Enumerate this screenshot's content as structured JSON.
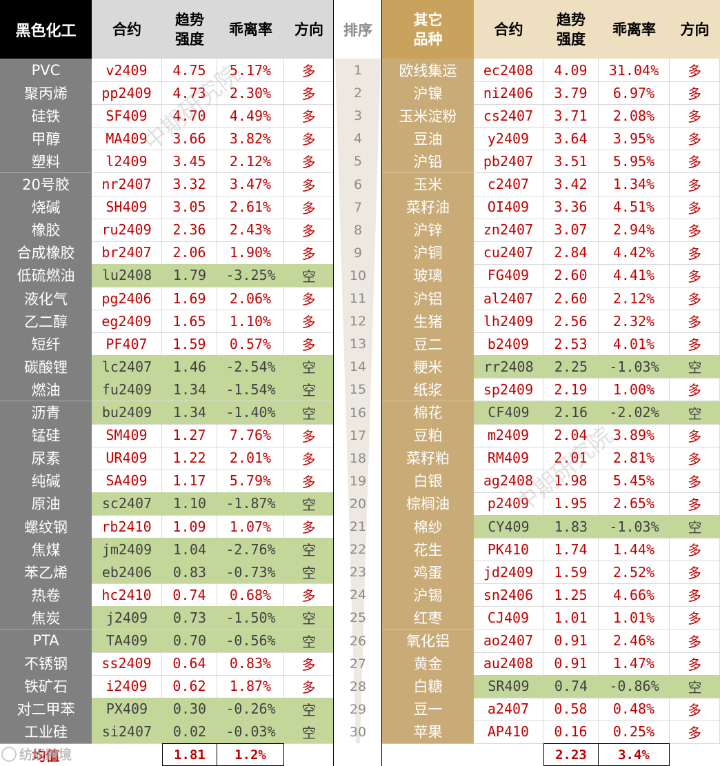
{
  "headers": {
    "left_category": "黑色化工",
    "contract": "合约",
    "strength": "趋势\n强度",
    "deviation": "乖离率",
    "direction": "方向",
    "rank": "排序",
    "right_category": "其它\n品种"
  },
  "colors": {
    "long_text": "#c00000",
    "short_bg": "#c4d79b",
    "left_name_bg": "#808080",
    "right_name_bg": "#c9ab78",
    "right_header_bg": "#c9a35d"
  },
  "left_rows": [
    {
      "name": "PVC",
      "contract": "v2409",
      "strength": "4.75",
      "deviation": "5.17%",
      "dir": "多"
    },
    {
      "name": "聚丙烯",
      "contract": "pp2409",
      "strength": "4.73",
      "deviation": "2.30%",
      "dir": "多"
    },
    {
      "name": "硅铁",
      "contract": "SF409",
      "strength": "4.70",
      "deviation": "4.49%",
      "dir": "多"
    },
    {
      "name": "甲醇",
      "contract": "MA409",
      "strength": "3.66",
      "deviation": "3.82%",
      "dir": "多"
    },
    {
      "name": "塑料",
      "contract": "l2409",
      "strength": "3.45",
      "deviation": "2.12%",
      "dir": "多"
    },
    {
      "name": "20号胶",
      "contract": "nr2407",
      "strength": "3.32",
      "deviation": "3.47%",
      "dir": "多"
    },
    {
      "name": "烧碱",
      "contract": "SH409",
      "strength": "3.05",
      "deviation": "2.61%",
      "dir": "多"
    },
    {
      "name": "橡胶",
      "contract": "ru2409",
      "strength": "2.36",
      "deviation": "2.43%",
      "dir": "多"
    },
    {
      "name": "合成橡胶",
      "contract": "br2407",
      "strength": "2.06",
      "deviation": "1.90%",
      "dir": "多"
    },
    {
      "name": "低硫燃油",
      "contract": "lu2408",
      "strength": "1.79",
      "deviation": "-3.25%",
      "dir": "空"
    },
    {
      "name": "液化气",
      "contract": "pg2406",
      "strength": "1.69",
      "deviation": "2.06%",
      "dir": "多"
    },
    {
      "name": "乙二醇",
      "contract": "eg2409",
      "strength": "1.65",
      "deviation": "1.10%",
      "dir": "多"
    },
    {
      "name": "短纤",
      "contract": "PF407",
      "strength": "1.59",
      "deviation": "0.57%",
      "dir": "多"
    },
    {
      "name": "碳酸锂",
      "contract": "lc2407",
      "strength": "1.46",
      "deviation": "-2.54%",
      "dir": "空"
    },
    {
      "name": "燃油",
      "contract": "fu2409",
      "strength": "1.34",
      "deviation": "-1.54%",
      "dir": "空"
    },
    {
      "name": "沥青",
      "contract": "bu2409",
      "strength": "1.34",
      "deviation": "-1.40%",
      "dir": "空"
    },
    {
      "name": "锰硅",
      "contract": "SM409",
      "strength": "1.27",
      "deviation": "7.76%",
      "dir": "多"
    },
    {
      "name": "尿素",
      "contract": "UR409",
      "strength": "1.22",
      "deviation": "2.01%",
      "dir": "多"
    },
    {
      "name": "纯碱",
      "contract": "SA409",
      "strength": "1.17",
      "deviation": "5.79%",
      "dir": "多"
    },
    {
      "name": "原油",
      "contract": "sc2407",
      "strength": "1.10",
      "deviation": "-1.87%",
      "dir": "空"
    },
    {
      "name": "螺纹钢",
      "contract": "rb2410",
      "strength": "1.09",
      "deviation": "1.07%",
      "dir": "多"
    },
    {
      "name": "焦煤",
      "contract": "jm2409",
      "strength": "1.04",
      "deviation": "-2.76%",
      "dir": "空"
    },
    {
      "name": "苯乙烯",
      "contract": "eb2406",
      "strength": "0.83",
      "deviation": "-0.73%",
      "dir": "空"
    },
    {
      "name": "热卷",
      "contract": "hc2410",
      "strength": "0.74",
      "deviation": "0.68%",
      "dir": "多"
    },
    {
      "name": "焦炭",
      "contract": "j2409",
      "strength": "0.73",
      "deviation": "-1.50%",
      "dir": "空"
    },
    {
      "name": "PTA",
      "contract": "TA409",
      "strength": "0.70",
      "deviation": "-0.56%",
      "dir": "空"
    },
    {
      "name": "不锈钢",
      "contract": "ss2409",
      "strength": "0.64",
      "deviation": "0.83%",
      "dir": "多"
    },
    {
      "name": "铁矿石",
      "contract": "i2409",
      "strength": "0.62",
      "deviation": "1.87%",
      "dir": "多"
    },
    {
      "name": "对二甲苯",
      "contract": "PX409",
      "strength": "0.30",
      "deviation": "-0.26%",
      "dir": "空"
    },
    {
      "name": "工业硅",
      "contract": "si2407",
      "strength": "0.02",
      "deviation": "-0.03%",
      "dir": "空"
    }
  ],
  "right_rows": [
    {
      "name": "欧线集运",
      "contract": "ec2408",
      "strength": "4.09",
      "deviation": "31.04%",
      "dir": "多"
    },
    {
      "name": "沪镍",
      "contract": "ni2406",
      "strength": "3.79",
      "deviation": "6.97%",
      "dir": "多"
    },
    {
      "name": "玉米淀粉",
      "contract": "cs2407",
      "strength": "3.71",
      "deviation": "2.08%",
      "dir": "多"
    },
    {
      "name": "豆油",
      "contract": "y2409",
      "strength": "3.64",
      "deviation": "3.95%",
      "dir": "多"
    },
    {
      "name": "沪铅",
      "contract": "pb2407",
      "strength": "3.51",
      "deviation": "5.95%",
      "dir": "多"
    },
    {
      "name": "玉米",
      "contract": "c2407",
      "strength": "3.42",
      "deviation": "1.34%",
      "dir": "多"
    },
    {
      "name": "菜籽油",
      "contract": "OI409",
      "strength": "3.36",
      "deviation": "4.51%",
      "dir": "多"
    },
    {
      "name": "沪锌",
      "contract": "zn2407",
      "strength": "3.07",
      "deviation": "2.94%",
      "dir": "多"
    },
    {
      "name": "沪铜",
      "contract": "cu2407",
      "strength": "2.84",
      "deviation": "4.42%",
      "dir": "多"
    },
    {
      "name": "玻璃",
      "contract": "FG409",
      "strength": "2.60",
      "deviation": "4.41%",
      "dir": "多"
    },
    {
      "name": "沪铝",
      "contract": "al2407",
      "strength": "2.60",
      "deviation": "2.12%",
      "dir": "多"
    },
    {
      "name": "生猪",
      "contract": "lh2409",
      "strength": "2.56",
      "deviation": "2.32%",
      "dir": "多"
    },
    {
      "name": "豆二",
      "contract": "b2409",
      "strength": "2.53",
      "deviation": "4.01%",
      "dir": "多"
    },
    {
      "name": "粳米",
      "contract": "rr2408",
      "strength": "2.25",
      "deviation": "-1.03%",
      "dir": "空"
    },
    {
      "name": "纸浆",
      "contract": "sp2409",
      "strength": "2.19",
      "deviation": "1.00%",
      "dir": "多"
    },
    {
      "name": "棉花",
      "contract": "CF409",
      "strength": "2.16",
      "deviation": "-2.02%",
      "dir": "空"
    },
    {
      "name": "豆粕",
      "contract": "m2409",
      "strength": "2.04",
      "deviation": "3.89%",
      "dir": "多"
    },
    {
      "name": "菜籽粕",
      "contract": "RM409",
      "strength": "2.01",
      "deviation": "2.81%",
      "dir": "多"
    },
    {
      "name": "白银",
      "contract": "ag2408",
      "strength": "1.98",
      "deviation": "5.45%",
      "dir": "多"
    },
    {
      "name": "棕榈油",
      "contract": "p2409",
      "strength": "1.95",
      "deviation": "2.65%",
      "dir": "多"
    },
    {
      "name": "棉纱",
      "contract": "CY409",
      "strength": "1.83",
      "deviation": "-1.03%",
      "dir": "空"
    },
    {
      "name": "花生",
      "contract": "PK410",
      "strength": "1.74",
      "deviation": "1.44%",
      "dir": "多"
    },
    {
      "name": "鸡蛋",
      "contract": "jd2409",
      "strength": "1.59",
      "deviation": "2.52%",
      "dir": "多"
    },
    {
      "name": "沪锡",
      "contract": "sn2406",
      "strength": "1.25",
      "deviation": "4.66%",
      "dir": "多"
    },
    {
      "name": "红枣",
      "contract": "CJ409",
      "strength": "1.01",
      "deviation": "1.01%",
      "dir": "多"
    },
    {
      "name": "氧化铝",
      "contract": "ao2407",
      "strength": "0.91",
      "deviation": "2.46%",
      "dir": "多"
    },
    {
      "name": "黄金",
      "contract": "au2408",
      "strength": "0.91",
      "deviation": "1.47%",
      "dir": "多"
    },
    {
      "name": "白糖",
      "contract": "SR409",
      "strength": "0.74",
      "deviation": "-0.86%",
      "dir": "空"
    },
    {
      "name": "豆一",
      "contract": "a2407",
      "strength": "0.58",
      "deviation": "0.48%",
      "dir": "多"
    },
    {
      "name": "苹果",
      "contract": "AP410",
      "strength": "0.16",
      "deviation": "0.25%",
      "dir": "多"
    }
  ],
  "ranks": [
    "1",
    "2",
    "3",
    "4",
    "5",
    "6",
    "7",
    "8",
    "9",
    "10",
    "11",
    "12",
    "13",
    "14",
    "15",
    "16",
    "17",
    "18",
    "19",
    "20",
    "21",
    "22",
    "23",
    "24",
    "25",
    "26",
    "27",
    "28",
    "29",
    "30"
  ],
  "footer": {
    "avg_label": "均值",
    "left_avg_strength": "1.81",
    "left_avg_deviation": "1.2%",
    "right_avg_strength": "2.23",
    "right_avg_deviation": "3.4%"
  },
  "watermarks": [
    "中期研究院",
    "中期研究院"
  ],
  "source_mark": "纺织跨境"
}
